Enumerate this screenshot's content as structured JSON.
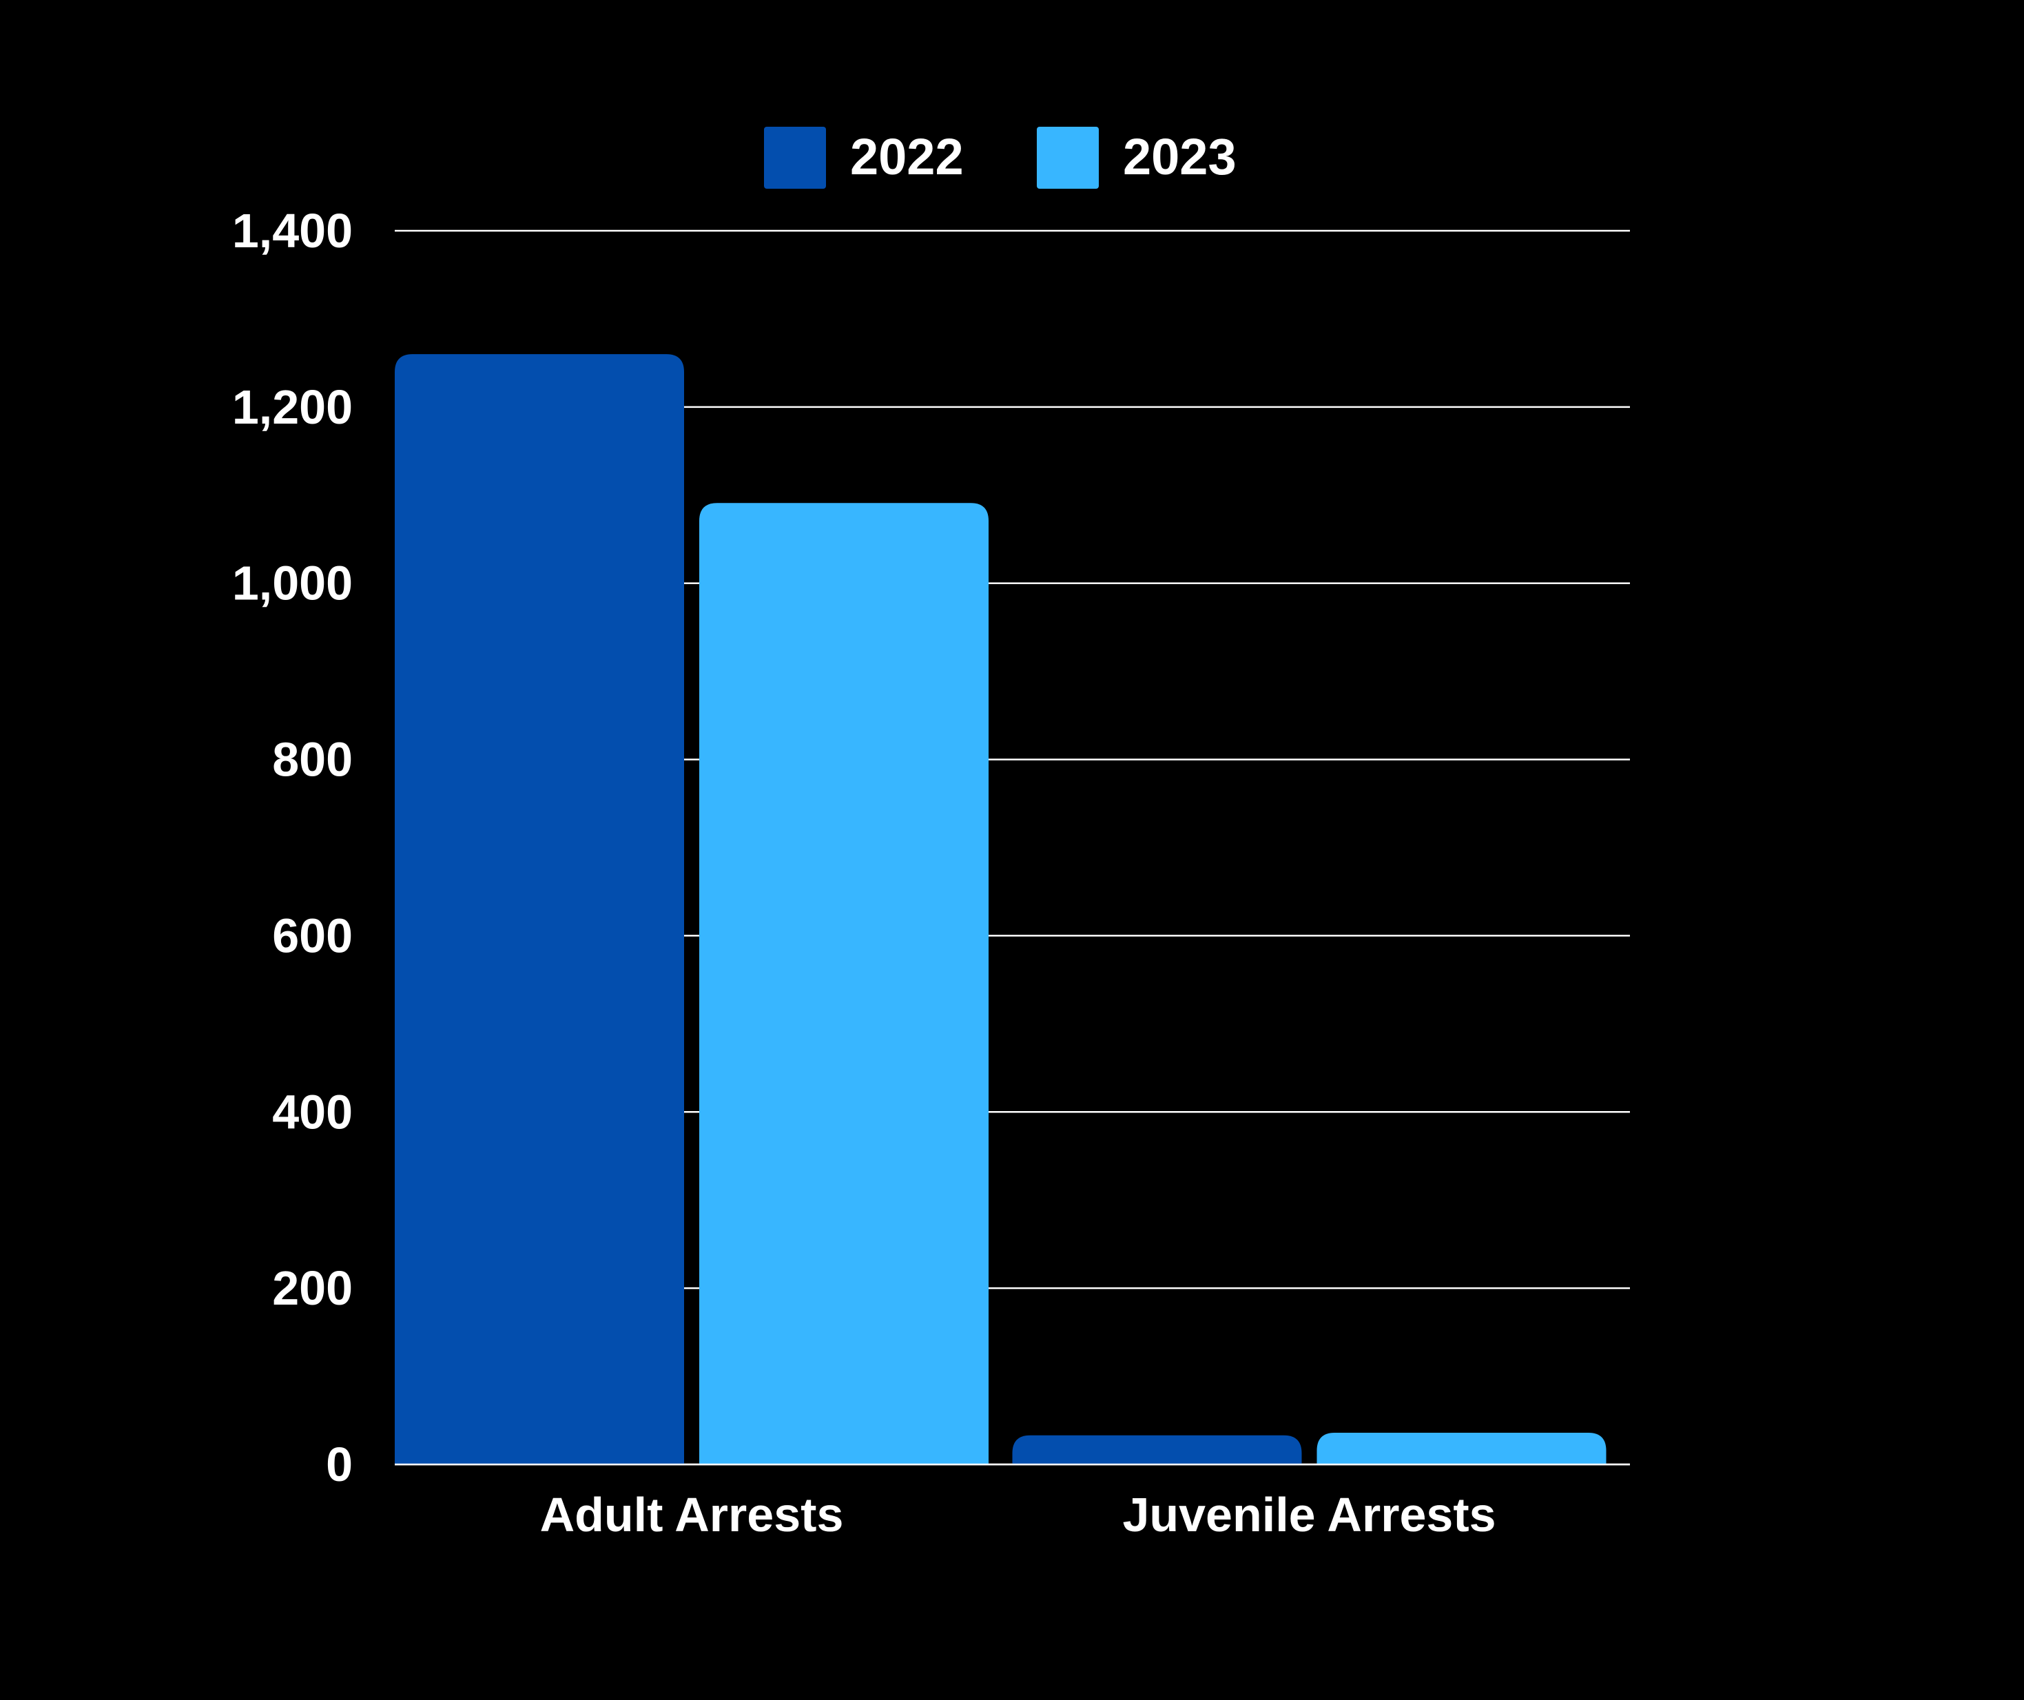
{
  "chart_data": {
    "type": "bar",
    "title": "",
    "xlabel": "",
    "ylabel": "",
    "categories": [
      "Adult Arrests",
      "Juvenile Arrests"
    ],
    "series": [
      {
        "name": "2022",
        "color": "#034EAE",
        "values": [
          1260,
          33
        ]
      },
      {
        "name": "2023",
        "color": "#38B6FF",
        "values": [
          1091,
          36
        ]
      }
    ],
    "ylim": [
      0,
      1400
    ],
    "yticks": [
      0,
      200,
      400,
      600,
      800,
      1000,
      1200,
      1400
    ],
    "ytick_labels": [
      "0",
      "200",
      "400",
      "600",
      "800",
      "1,000",
      "1,200",
      "1,400"
    ],
    "grid": true,
    "legend_position": "top-center",
    "background": "#000000",
    "text_color": "#FFFFFF",
    "grid_color": "#FFFFFF"
  }
}
